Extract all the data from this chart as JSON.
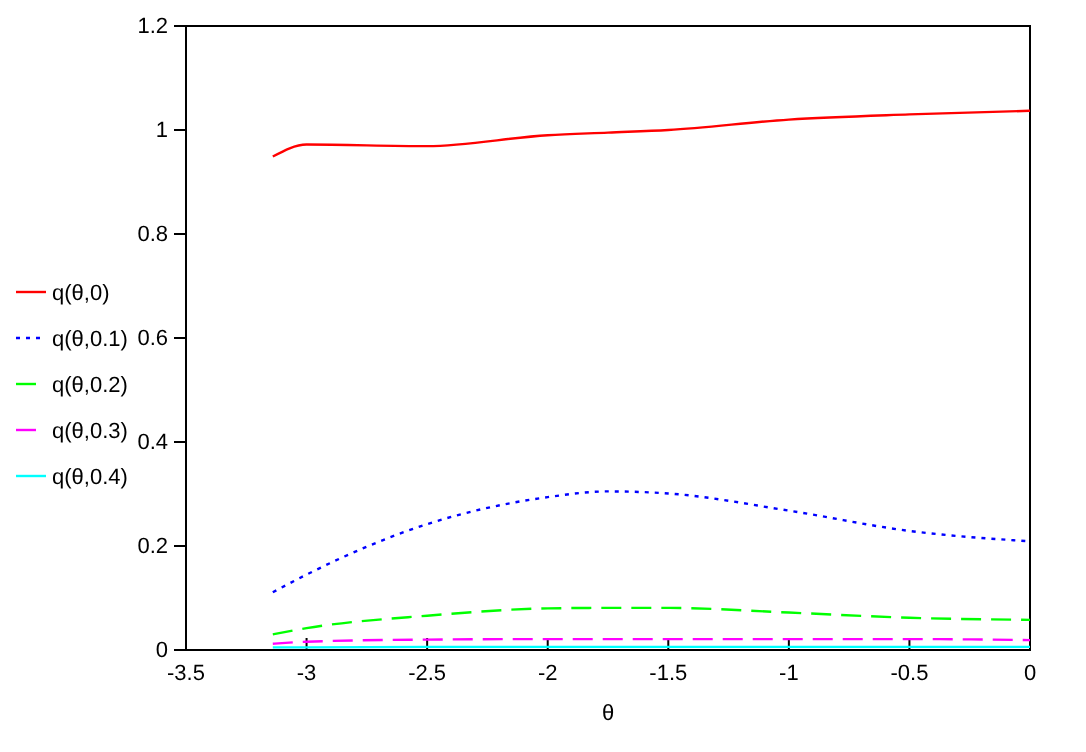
{
  "chart_data": {
    "type": "line",
    "xlabel": "θ",
    "xlim": [
      -3.5,
      0
    ],
    "ylim": [
      0,
      1.2
    ],
    "xticks": [
      -3.5,
      -3,
      -2.5,
      -2,
      -1.5,
      -1,
      -0.5,
      0
    ],
    "yticks": [
      0,
      0.2,
      0.4,
      0.6,
      0.8,
      1,
      1.2
    ],
    "grid": false,
    "legend": "left",
    "marker": "none",
    "x": [
      -3.14,
      -3,
      -2.5,
      -2,
      -1.75,
      -1.5,
      -1,
      -0.5,
      0
    ],
    "series": [
      {
        "name": "q(θ,0)",
        "color": "#ff0000",
        "line_style": "solid",
        "values": [
          0.949,
          0.972,
          0.969,
          0.99,
          0.995,
          1.0,
          1.02,
          1.03,
          1.037
        ]
      },
      {
        "name": "q(θ,0.1)",
        "color": "#0000ff",
        "line_style": "dotted",
        "values": [
          0.111,
          0.145,
          0.242,
          0.294,
          0.305,
          0.301,
          0.268,
          0.229,
          0.209
        ]
      },
      {
        "name": "q(θ,0.2)",
        "color": "#00ff00",
        "line_style": "dashed",
        "values": [
          0.03,
          0.042,
          0.066,
          0.08,
          0.081,
          0.081,
          0.072,
          0.062,
          0.058
        ]
      },
      {
        "name": "q(θ,0.3)",
        "color": "#ff00ff",
        "line_style": "dashed",
        "values": [
          0.012,
          0.016,
          0.02,
          0.021,
          0.021,
          0.021,
          0.021,
          0.021,
          0.019
        ]
      },
      {
        "name": "q(θ,0.4)",
        "color": "#00ffff",
        "line_style": "solid",
        "values": [
          0.005,
          0.005,
          0.006,
          0.006,
          0.006,
          0.006,
          0.006,
          0.006,
          0.006
        ]
      }
    ]
  }
}
